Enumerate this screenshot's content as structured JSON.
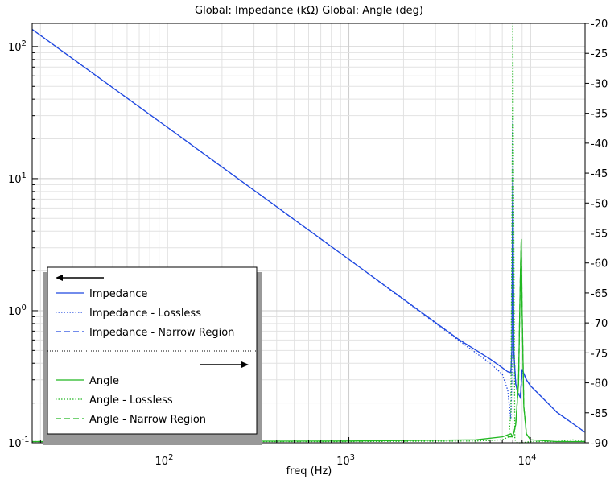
{
  "chart_data": {
    "type": "line",
    "title": "Global: Impedance (kΩ)  Global: Angle (deg)",
    "xlabel": "freq (Hz)",
    "xscale": "log",
    "xlim": [
      18,
      20000
    ],
    "x_ticks": [
      {
        "value": 100,
        "base": "10",
        "exp": "2"
      },
      {
        "value": 1000,
        "base": "10",
        "exp": "3"
      },
      {
        "value": 10000,
        "base": "10",
        "exp": "4"
      }
    ],
    "y_left": {
      "scale": "log",
      "lim": [
        0.1,
        150
      ],
      "ticks": [
        {
          "value": 0.1,
          "base": "10",
          "exp": "-1"
        },
        {
          "value": 1,
          "base": "10",
          "exp": "0"
        },
        {
          "value": 10,
          "base": "10",
          "exp": "1"
        },
        {
          "value": 100,
          "base": "10",
          "exp": "2"
        }
      ]
    },
    "y_right": {
      "scale": "linear",
      "lim": [
        -90,
        -20
      ],
      "ticks": [
        "-20",
        "-25",
        "-30",
        "-35",
        "-40",
        "-45",
        "-50",
        "-55",
        "-60",
        "-65",
        "-70",
        "-75",
        "-80",
        "-85",
        "-90"
      ]
    },
    "grid": true,
    "legend": {
      "placement": "lower-left",
      "left_arrow": "←",
      "right_arrow": "→"
    },
    "series": [
      {
        "name": "Impedance",
        "axis": "left",
        "color": "#1f48e0",
        "dash": "solid",
        "x": [
          18,
          100,
          1000,
          4000,
          6000,
          7000,
          7500,
          7800,
          7900,
          8000,
          8100,
          8300,
          8500,
          8800,
          9000,
          9500,
          10000,
          14000,
          20000
        ],
        "y": [
          135,
          24.5,
          2.45,
          0.61,
          0.43,
          0.37,
          0.345,
          0.34,
          0.5,
          10,
          0.48,
          0.28,
          0.24,
          0.22,
          0.36,
          0.3,
          0.27,
          0.17,
          0.12
        ]
      },
      {
        "name": "Impedance - Lossless",
        "axis": "left",
        "color": "#1f48e0",
        "dash": "dotted",
        "x": [
          18,
          100,
          1000,
          4000,
          6000,
          7000,
          7500,
          7800,
          7900,
          8000,
          8100,
          8300,
          8500,
          8800,
          9000,
          9500,
          10000,
          14000,
          20000
        ],
        "y": [
          135,
          24.5,
          2.45,
          0.6,
          0.4,
          0.33,
          0.25,
          0.15,
          0.3,
          30,
          0.5,
          0.28,
          0.25,
          0.22,
          0.35,
          0.3,
          0.27,
          0.17,
          0.12
        ]
      },
      {
        "name": "Impedance - Narrow Region",
        "axis": "left",
        "color": "#1f48e0",
        "dash": "dashed",
        "x": [
          7500,
          7800,
          7900,
          8000,
          8100,
          8300,
          8500,
          8800,
          9000,
          9500,
          10000
        ],
        "y": [
          0.345,
          0.34,
          0.5,
          10,
          0.48,
          0.28,
          0.24,
          0.22,
          0.36,
          0.3,
          0.27
        ]
      },
      {
        "name": "Angle",
        "axis": "right",
        "color": "#22b822",
        "dash": "solid",
        "x": [
          18,
          1000,
          5000,
          7000,
          7800,
          8000,
          8300,
          8600,
          8800,
          8900,
          9000,
          9200,
          9500,
          10000,
          14000,
          20000
        ],
        "y": [
          -89.8,
          -89.7,
          -89.5,
          -89,
          -88.5,
          -89,
          -87,
          -80,
          -62,
          -56,
          -68,
          -84,
          -88.5,
          -89.5,
          -89.8,
          -89.8
        ]
      },
      {
        "name": "Angle - Lossless",
        "axis": "right",
        "color": "#22b822",
        "dash": "dotted",
        "x": [
          18,
          1000,
          5000,
          7000,
          7600,
          7800,
          7950,
          8000,
          8050,
          8200,
          8500,
          9000,
          10000,
          14000,
          17000,
          20000
        ],
        "y": [
          -89.8,
          -89.8,
          -89.7,
          -89.5,
          -89,
          -85,
          -40,
          -20,
          -40,
          -89.5,
          -90,
          -90,
          -89.8,
          -89.8,
          -89.5,
          -89.8
        ]
      },
      {
        "name": "Angle - Narrow Region",
        "axis": "right",
        "color": "#22b822",
        "dash": "dashed",
        "x": [
          7500,
          8000,
          8300,
          8600,
          8800,
          8900,
          9000,
          9200,
          9500,
          10000
        ],
        "y": [
          -89,
          -89,
          -87,
          -80,
          -62,
          -56,
          -68,
          -84,
          -88.5,
          -89.5
        ]
      }
    ]
  }
}
